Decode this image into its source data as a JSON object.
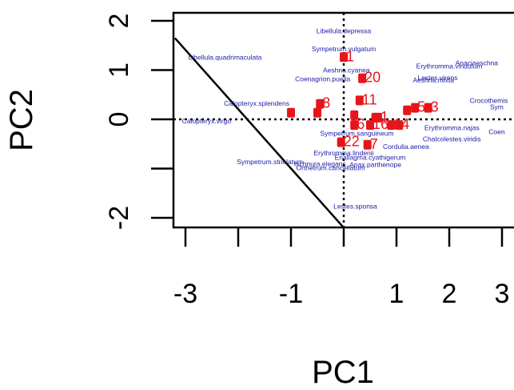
{
  "chart_data": {
    "type": "scatter",
    "title": "",
    "xlabel": "PC1",
    "ylabel": "PC2",
    "xlim": [
      -3.2,
      3.0
    ],
    "ylim": [
      -2.2,
      2.2
    ],
    "x_ticks": [
      -3,
      -2,
      -1,
      0,
      1,
      2,
      3
    ],
    "x_tick_labels": [
      "-3",
      "",
      "-1",
      "",
      "1",
      "2",
      "3"
    ],
    "y_ticks": [
      -2,
      -1,
      0,
      1,
      2
    ],
    "y_tick_labels": [
      "-2",
      "",
      "0",
      "1",
      "2"
    ],
    "reference_lines": {
      "x": 0,
      "y": 0
    },
    "boundary_line": [
      [
        -3.2,
        1.65
      ],
      [
        0,
        -2.2
      ]
    ],
    "colors": {
      "points": "#e8141b",
      "species_labels": "#1a1aa8",
      "frame": "#000000"
    },
    "species": [
      {
        "name": "Libellula.depressa",
        "x": 0.0,
        "y": 1.75
      },
      {
        "name": "Sympetrum.vulgatum",
        "x": 0.0,
        "y": 1.38
      },
      {
        "name": "Libellula.quadrimaculata",
        "x": -2.25,
        "y": 1.21
      },
      {
        "name": "Aeshna.cyanea",
        "x": 0.05,
        "y": 0.95
      },
      {
        "name": "Coenagrion.puella",
        "x": -0.4,
        "y": 0.77
      },
      {
        "name": "Anaciaeschna",
        "x": 2.52,
        "y": 1.1
      },
      {
        "name": "Erythromma.viridulum",
        "x": 2.0,
        "y": 1.03
      },
      {
        "name": "Lestes.virens",
        "x": 1.78,
        "y": 0.8
      },
      {
        "name": "Aeshna.mixta",
        "x": 1.7,
        "y": 0.75
      },
      {
        "name": "Calopteryx.splendens",
        "x": -1.65,
        "y": 0.28
      },
      {
        "name": "Crocothemis",
        "x": 2.75,
        "y": 0.33
      },
      {
        "name": "Sym",
        "x": 2.9,
        "y": 0.2
      },
      {
        "name": "Calopteryx.virgo",
        "x": -2.6,
        "y": -0.08
      },
      {
        "name": "Sympetrum.sanguineum",
        "x": 0.25,
        "y": -0.33
      },
      {
        "name": "Erythromma.najas",
        "x": 2.05,
        "y": -0.22
      },
      {
        "name": "Coen",
        "x": 2.9,
        "y": -0.3
      },
      {
        "name": "Chalcolestes.viridis",
        "x": 2.05,
        "y": -0.45
      },
      {
        "name": "Cordulia.aenea",
        "x": 1.18,
        "y": -0.6
      },
      {
        "name": "Erythromma.lindenii",
        "x": 0.0,
        "y": -0.73
      },
      {
        "name": "Enallagma.cyathigerum",
        "x": 0.5,
        "y": -0.82
      },
      {
        "name": "Sympetrum.striolatum",
        "x": -1.4,
        "y": -0.91
      },
      {
        "name": "Ischnura.elegans",
        "x": -0.45,
        "y": -0.95
      },
      {
        "name": "Anax.parthenope",
        "x": 0.6,
        "y": -0.97
      },
      {
        "name": "Orthetrum.cancellatum",
        "x": -0.25,
        "y": -1.03
      },
      {
        "name": "Lestes.sponsa",
        "x": 0.22,
        "y": -1.81
      }
    ],
    "sites": [
      {
        "label": "1",
        "x": 0.0,
        "y": 1.28
      },
      {
        "label": "20",
        "x": 0.35,
        "y": 0.85
      },
      {
        "label": "11",
        "x": 0.3,
        "y": 0.4
      },
      {
        "label": "8",
        "x": -0.45,
        "y": 0.33
      },
      {
        "label": "",
        "x": -1.0,
        "y": 0.15
      },
      {
        "label": "",
        "x": -0.5,
        "y": 0.15
      },
      {
        "label": "",
        "x": 0.2,
        "y": 0.1
      },
      {
        "label": "",
        "x": 0.6,
        "y": 0.05
      },
      {
        "label": "5",
        "x": 1.35,
        "y": 0.25
      },
      {
        "label": "3",
        "x": 1.6,
        "y": 0.25
      },
      {
        "label": "",
        "x": 1.2,
        "y": 0.2
      },
      {
        "label": "6",
        "x": 0.2,
        "y": -0.1
      },
      {
        "label": "16",
        "x": 0.5,
        "y": -0.1
      },
      {
        "label": "1",
        "x": 0.65,
        "y": 0.05
      },
      {
        "label": "1",
        "x": 0.9,
        "y": -0.1
      },
      {
        "label": "4",
        "x": 1.05,
        "y": -0.1
      },
      {
        "label": "22",
        "x": -0.05,
        "y": -0.45
      },
      {
        "label": "7",
        "x": 0.45,
        "y": -0.5
      }
    ]
  }
}
